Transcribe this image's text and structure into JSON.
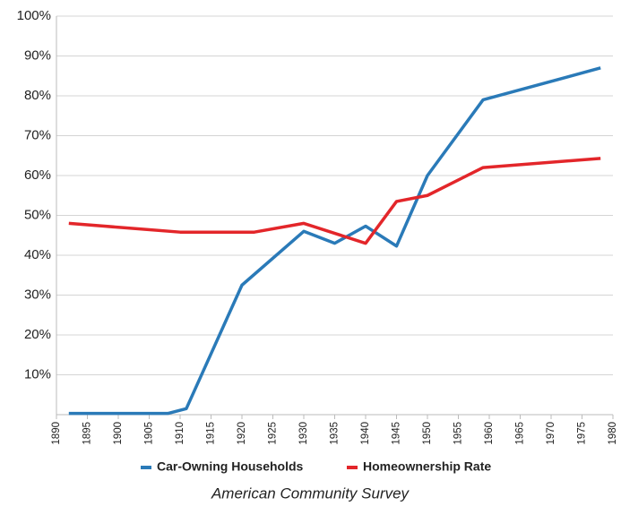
{
  "chart_data": {
    "type": "line",
    "caption": "American Community Survey",
    "xlim": [
      1890,
      1980
    ],
    "xticks": [
      1890,
      1895,
      1900,
      1905,
      1910,
      1915,
      1920,
      1925,
      1930,
      1935,
      1940,
      1945,
      1950,
      1955,
      1960,
      1965,
      1970,
      1975,
      1980
    ],
    "ylim": [
      0,
      100
    ],
    "yticks": [
      {
        "value": 10,
        "label": "10%"
      },
      {
        "value": 20,
        "label": "20%"
      },
      {
        "value": 30,
        "label": "30%"
      },
      {
        "value": 40,
        "label": "40%"
      },
      {
        "value": 50,
        "label": "50%"
      },
      {
        "value": 60,
        "label": "60%"
      },
      {
        "value": 70,
        "label": "70%"
      },
      {
        "value": 80,
        "label": "80%"
      },
      {
        "value": 90,
        "label": "90%"
      },
      {
        "value": 100,
        "label": "100%"
      }
    ],
    "grid": true,
    "legend": "bottom",
    "series": [
      {
        "name": "Car-Owning Households",
        "color": "#2a7ab8",
        "x": [
          1892,
          1908,
          1911,
          1920,
          1930,
          1935,
          1940,
          1945,
          1950,
          1959,
          1978
        ],
        "values": [
          0.3,
          0.3,
          1.5,
          32.5,
          46,
          43,
          47.3,
          42.3,
          60,
          79,
          87
        ]
      },
      {
        "name": "Homeownership Rate",
        "color": "#e3262a",
        "x": [
          1892,
          1910,
          1922,
          1930,
          1940,
          1945,
          1950,
          1959,
          1978
        ],
        "values": [
          48,
          45.8,
          45.8,
          48,
          43,
          53.5,
          55,
          62,
          64.3
        ]
      }
    ]
  }
}
